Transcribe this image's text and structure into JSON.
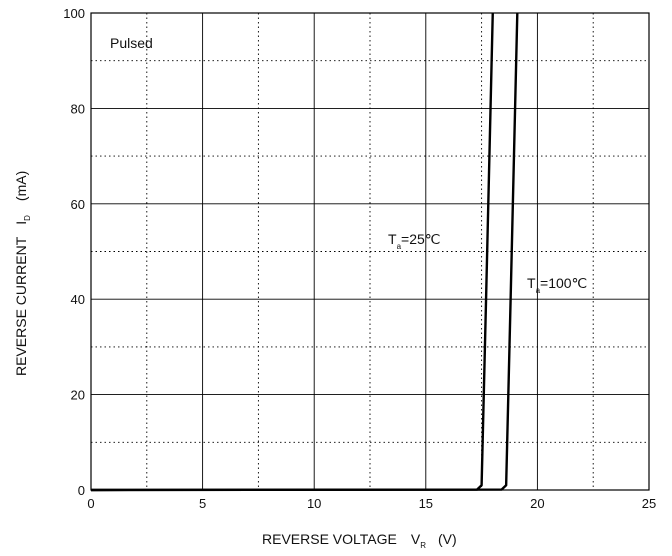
{
  "chart_data": {
    "type": "line",
    "xlabel": "REVERSE VOLTAGE",
    "xlabel_symbol": "V",
    "xlabel_subscript": "R",
    "xlabel_unit": "(V)",
    "ylabel": "REVERSE CURRENT",
    "ylabel_symbol": "I",
    "ylabel_subscript": "D",
    "ylabel_unit": "(mA)",
    "xlim": [
      0,
      25
    ],
    "ylim": [
      0,
      100
    ],
    "x_ticks": [
      "0",
      "5",
      "10",
      "15",
      "20",
      "25"
    ],
    "y_ticks": [
      "0",
      "20",
      "40",
      "60",
      "80",
      "100"
    ],
    "grid": "solid major lines every 5 V / 20 mA, dotted minor lines at midpoints",
    "annotation": "Pulsed",
    "series": [
      {
        "name": "Ta=25°C",
        "label_symbol": "T",
        "label_subscript": "a",
        "label_value": "=25℃",
        "points": [
          [
            0,
            0
          ],
          [
            17.3,
            0.1
          ],
          [
            17.5,
            1
          ],
          [
            17.7,
            40
          ],
          [
            17.9,
            80
          ],
          [
            18.0,
            100
          ]
        ]
      },
      {
        "name": "Ta=100°C",
        "label_symbol": "T",
        "label_subscript": "a",
        "label_value": "=100℃",
        "points": [
          [
            0,
            0
          ],
          [
            18.4,
            0.1
          ],
          [
            18.6,
            1
          ],
          [
            18.8,
            40
          ],
          [
            19.0,
            80
          ],
          [
            19.1,
            100
          ]
        ]
      }
    ]
  }
}
